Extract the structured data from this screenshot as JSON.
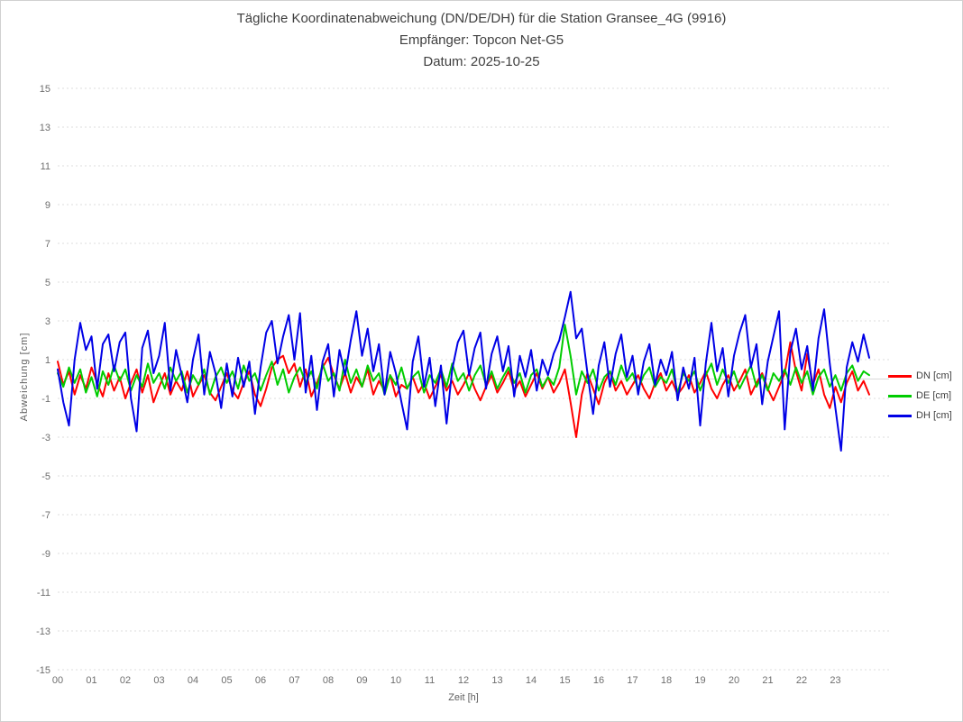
{
  "chart_data": {
    "type": "line",
    "title": "Tägliche Koordinatenabweichung (DN/DE/DH) für die Station Gransee_4G (9916)",
    "subtitle": [
      "Empfänger: Topcon Net-G5",
      "Datum: 2025-10-25"
    ],
    "xlabel": "Zeit [h]",
    "ylabel": "Abweichung [cm]",
    "xlim": [
      0,
      24
    ],
    "ylim": [
      -15,
      15
    ],
    "x_unit": "hour of day",
    "sample_interval_min": 10,
    "grid": "horizontal dotted lines at odd cm values, solid light line at 0",
    "legend_position": "right-center",
    "y_ticks": [
      15,
      13,
      11,
      9,
      7,
      5,
      3,
      1,
      -1,
      -3,
      -5,
      -7,
      -9,
      -11,
      -13,
      -15
    ],
    "x_tick_labels": [
      "00",
      "01",
      "02",
      "03",
      "04",
      "05",
      "06",
      "07",
      "08",
      "09",
      "10",
      "11",
      "12",
      "13",
      "14",
      "15",
      "16",
      "17",
      "18",
      "19",
      "20",
      "21",
      "22",
      "23"
    ],
    "series": [
      {
        "name": "DN [cm]",
        "color": "#ff0000",
        "values": [
          0.9,
          -0.3,
          0.4,
          -0.8,
          0.2,
          -0.5,
          0.6,
          -0.2,
          -0.9,
          0.3,
          -0.6,
          0.1,
          -1.0,
          -0.2,
          0.5,
          -0.7,
          0.2,
          -1.2,
          -0.4,
          0.3,
          -0.8,
          -0.1,
          -0.6,
          0.4,
          -0.9,
          -0.3,
          0.2,
          -0.7,
          -1.1,
          -0.4,
          0.3,
          -0.6,
          -1.0,
          -0.2,
          0.4,
          -0.8,
          -1.4,
          -0.5,
          0.6,
          1.0,
          1.2,
          0.3,
          0.8,
          -0.4,
          0.5,
          -0.9,
          -0.2,
          0.6,
          1.1,
          0.2,
          -0.5,
          0.3,
          -0.7,
          0.1,
          -0.4,
          0.5,
          -0.8,
          -0.1,
          -0.6,
          0.2,
          -0.9,
          -0.3,
          -0.5,
          0.1,
          -0.7,
          -0.2,
          -1.0,
          -0.4,
          0.2,
          -0.6,
          -0.1,
          -0.8,
          -0.3,
          0.3,
          -0.5,
          -1.1,
          -0.4,
          0.2,
          -0.7,
          -0.2,
          0.4,
          -0.6,
          -0.1,
          -0.9,
          -0.3,
          0.3,
          -0.5,
          0.1,
          -0.7,
          -0.2,
          0.5,
          -1.2,
          -3.0,
          -0.8,
          0.3,
          -0.5,
          -1.3,
          -0.2,
          0.4,
          -0.6,
          -0.1,
          -0.8,
          -0.3,
          0.2,
          -0.5,
          -1.0,
          -0.2,
          0.3,
          -0.6,
          -0.1,
          -0.8,
          -0.4,
          0.2,
          -0.7,
          -0.2,
          0.4,
          -0.5,
          -1.0,
          -0.3,
          0.2,
          -0.6,
          -0.1,
          0.5,
          -0.8,
          -0.2,
          0.3,
          -0.5,
          -1.1,
          -0.4,
          0.3,
          1.9,
          0.4,
          -0.6,
          1.3,
          -0.3,
          0.5,
          -0.8,
          -1.5,
          -0.4,
          -1.2,
          -0.2,
          0.4,
          -0.6,
          -0.1,
          -0.8
        ]
      },
      {
        "name": "DE [cm]",
        "color": "#00cc00",
        "values": [
          0.3,
          -0.4,
          0.6,
          -0.2,
          0.5,
          -0.7,
          0.1,
          -0.9,
          0.4,
          -0.3,
          0.7,
          -0.1,
          0.5,
          -0.6,
          0.2,
          -0.4,
          0.8,
          -0.2,
          0.3,
          -0.5,
          0.6,
          -0.1,
          0.4,
          -0.7,
          0.2,
          -0.3,
          0.5,
          -0.8,
          0.1,
          0.6,
          -0.2,
          0.4,
          -0.5,
          0.7,
          -0.1,
          0.3,
          -0.6,
          0.2,
          0.9,
          -0.3,
          0.5,
          -0.7,
          0.1,
          0.6,
          -0.2,
          0.4,
          -0.5,
          0.8,
          -0.1,
          0.3,
          -0.6,
          1.0,
          -0.2,
          0.5,
          -0.4,
          0.7,
          -0.1,
          0.3,
          -0.8,
          0.2,
          -0.3,
          0.6,
          -0.5,
          0.1,
          0.4,
          -0.7,
          0.2,
          -0.2,
          0.5,
          -0.4,
          0.8,
          -0.1,
          0.3,
          -0.6,
          0.2,
          0.7,
          -0.3,
          0.4,
          -0.5,
          0.1,
          0.6,
          -0.2,
          0.3,
          -0.7,
          0.2,
          0.5,
          -0.4,
          0.1,
          -0.3,
          0.6,
          2.8,
          1.2,
          -0.8,
          0.4,
          -0.2,
          0.5,
          -0.6,
          0.1,
          0.4,
          -0.3,
          0.7,
          -0.1,
          0.3,
          -0.5,
          0.2,
          0.6,
          -0.4,
          0.1,
          -0.2,
          0.5,
          -0.7,
          0.3,
          -0.1,
          0.4,
          -0.6,
          0.2,
          0.8,
          -0.3,
          0.5,
          -0.2,
          0.4,
          -0.5,
          0.1,
          0.7,
          -0.4,
          0.2,
          -0.6,
          0.3,
          -0.1,
          0.5,
          -0.3,
          0.6,
          -0.2,
          0.4,
          -0.8,
          0.1,
          0.5,
          -0.4,
          0.2,
          -0.6,
          0.3,
          0.7,
          -0.1,
          0.4,
          0.2
        ]
      },
      {
        "name": "DH [cm]",
        "color": "#0000e6",
        "values": [
          0.5,
          -1.2,
          -2.4,
          1.0,
          2.9,
          1.5,
          2.2,
          -0.5,
          1.8,
          2.3,
          0.4,
          1.9,
          2.4,
          -1.0,
          -2.7,
          1.6,
          2.5,
          0.3,
          1.2,
          2.9,
          -0.6,
          1.5,
          0.2,
          -1.2,
          1.0,
          2.3,
          -0.8,
          1.4,
          0.3,
          -1.5,
          0.8,
          -0.9,
          1.1,
          -0.4,
          0.9,
          -1.8,
          0.6,
          2.4,
          3.0,
          0.8,
          2.2,
          3.3,
          1.0,
          3.4,
          -0.7,
          1.2,
          -1.6,
          0.9,
          1.8,
          -0.9,
          1.5,
          0.2,
          2.0,
          3.5,
          1.2,
          2.6,
          0.4,
          1.8,
          -0.8,
          1.4,
          0.3,
          -1.2,
          -2.6,
          0.9,
          2.2,
          -0.4,
          1.1,
          -1.4,
          0.7,
          -2.3,
          0.5,
          1.9,
          2.5,
          0.2,
          1.6,
          2.4,
          -0.5,
          1.3,
          2.2,
          0.4,
          1.7,
          -0.9,
          1.2,
          0.1,
          1.5,
          -0.6,
          1.0,
          0.2,
          1.3,
          2.0,
          3.2,
          4.5,
          2.1,
          2.6,
          0.3,
          -1.8,
          0.7,
          1.9,
          -0.4,
          1.3,
          2.3,
          0.1,
          1.2,
          -0.8,
          0.9,
          1.8,
          -0.3,
          1.0,
          0.2,
          1.4,
          -1.1,
          0.6,
          -0.5,
          1.1,
          -2.4,
          0.8,
          2.9,
          0.4,
          1.6,
          -0.9,
          1.2,
          2.4,
          3.3,
          0.6,
          1.8,
          -1.3,
          0.9,
          2.2,
          3.5,
          -2.6,
          1.4,
          2.6,
          0.5,
          1.7,
          -0.6,
          2.1,
          3.6,
          0.8,
          -1.5,
          -3.7,
          0.6,
          1.9,
          0.9,
          2.3,
          1.1
        ]
      }
    ],
    "colors": {
      "grid_dotted": "#dcdcdc",
      "zero_line": "#d9d9d9",
      "tick_label": "#6e6e6e",
      "axis_label": "#5f5f5f",
      "title_text": "#3f3f3f"
    }
  }
}
